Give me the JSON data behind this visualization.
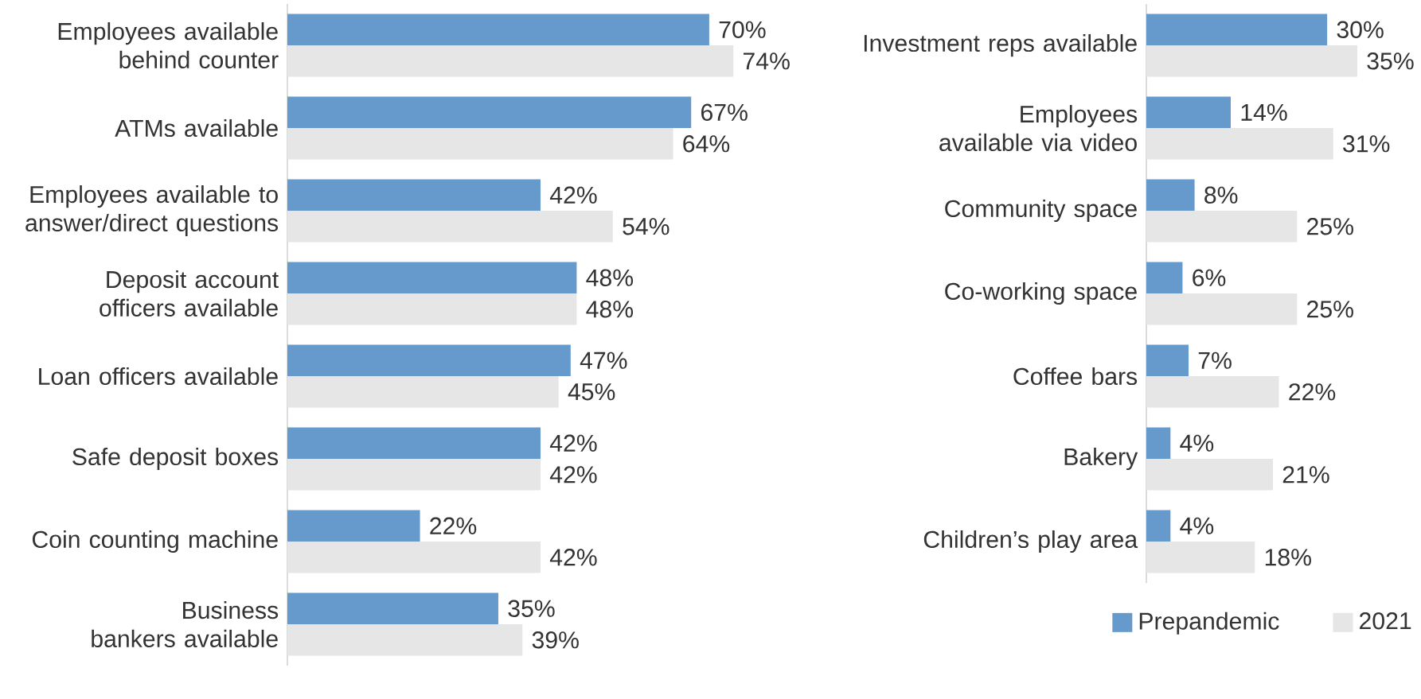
{
  "chart_data": [
    {
      "type": "bar",
      "orientation": "horizontal",
      "categories": [
        "Employees available behind counter",
        "ATMs available",
        "Employees available to answer/direct questions",
        "Deposit account officers available",
        "Loan officers available",
        "Safe deposit boxes",
        "Coin counting machine",
        "Business bankers available"
      ],
      "series": [
        {
          "color": "#6699cc",
          "values": [
            70,
            67,
            42,
            48,
            47,
            42,
            22,
            35
          ],
          "value_labels": [
            "70%",
            "67%",
            "42%",
            "48%",
            "47%",
            "42%",
            "22%",
            "35%"
          ]
        },
        {
          "color": "#e6e6e6",
          "values": [
            74,
            64,
            54,
            48,
            45,
            42,
            42,
            39
          ],
          "value_labels": [
            "74%",
            "64%",
            "54%",
            "48%",
            "45%",
            "42%",
            "42%",
            "39%"
          ]
        }
      ]
    },
    {
      "type": "bar",
      "orientation": "horizontal",
      "legend": "bottom",
      "categories": [
        "Investment reps available",
        "Employees available via video",
        "Community space",
        "Co-working space",
        "Coffee bars",
        "Bakery",
        "Children’s play area"
      ],
      "series": [
        {
          "name": "Prepandemic",
          "color": "#6699cc",
          "values": [
            30,
            14,
            8,
            6,
            7,
            4,
            4
          ],
          "value_labels": [
            "30%",
            "14%",
            "8%",
            "6%",
            "7%",
            "4%",
            "4%"
          ]
        },
        {
          "name": "2021",
          "color": "#e6e6e6",
          "values": [
            35,
            31,
            25,
            25,
            22,
            21,
            18
          ],
          "value_labels": [
            "35%",
            "31%",
            "25%",
            "25%",
            "22%",
            "21%",
            "18%"
          ]
        }
      ]
    }
  ]
}
